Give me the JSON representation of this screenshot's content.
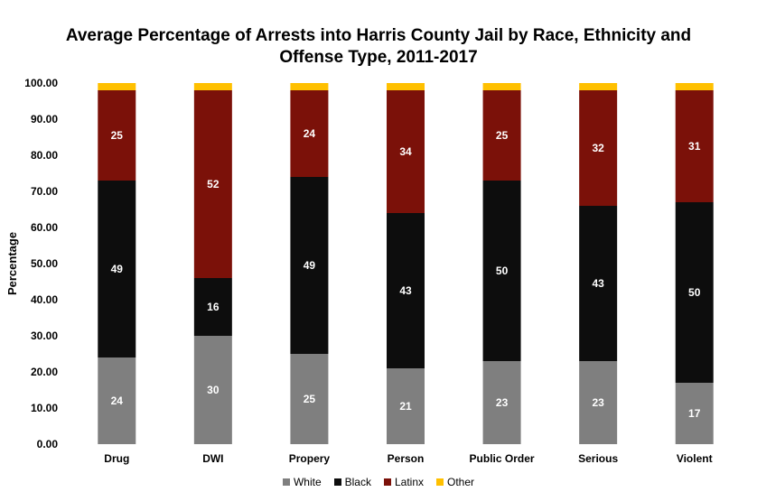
{
  "chart_data": {
    "type": "bar",
    "stacked": true,
    "title_lines": [
      "Average Percentage of Arrests into Harris County Jail by Race, Ethnicity and",
      "Offense Type, 2011-2017"
    ],
    "xlabel": "",
    "ylabel": "Percentage",
    "ylim": [
      0,
      100
    ],
    "yticks": [
      "0.00",
      "10.00",
      "20.00",
      "30.00",
      "40.00",
      "50.00",
      "60.00",
      "70.00",
      "80.00",
      "90.00",
      "100.00"
    ],
    "categories": [
      "Drug",
      "DWI",
      "Propery",
      "Person",
      "Public Order",
      "Serious",
      "Violent"
    ],
    "series": [
      {
        "name": "White",
        "color": "#7f7f7f",
        "values": [
          24,
          30,
          25,
          21,
          23,
          23,
          17
        ]
      },
      {
        "name": "Black",
        "color": "#0d0d0d",
        "values": [
          49,
          16,
          49,
          43,
          50,
          43,
          50
        ]
      },
      {
        "name": "Latinx",
        "color": "#7b1109",
        "values": [
          25,
          52,
          24,
          34,
          25,
          32,
          31
        ]
      },
      {
        "name": "Other",
        "color": "#ffc000",
        "values": [
          2,
          2,
          2,
          2,
          2,
          2,
          2
        ]
      }
    ],
    "grid": false,
    "legend_position": "bottom"
  }
}
